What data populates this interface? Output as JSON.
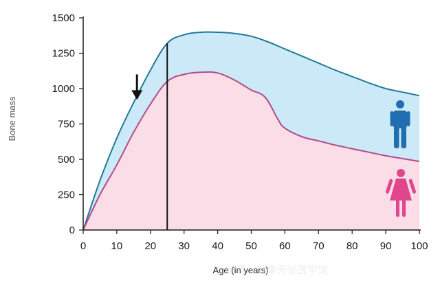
{
  "chart_data": {
    "type": "area",
    "title": "",
    "xlabel": "Age (in years)",
    "ylabel": "Bone mass",
    "xlim": [
      0,
      100
    ],
    "ylim": [
      0,
      1500
    ],
    "x_ticks": [
      0,
      10,
      20,
      30,
      40,
      50,
      60,
      70,
      80,
      90,
      100
    ],
    "y_ticks": [
      0,
      250,
      500,
      750,
      1000,
      1250,
      1500
    ],
    "grid": false,
    "series": [
      {
        "name": "Male",
        "color": "#1f7a96",
        "fill": "#cce9f8",
        "icon": "male-figure-icon",
        "icon_color": "#1f6fb0",
        "x": [
          0,
          5,
          10,
          15,
          20,
          25,
          30,
          35,
          40,
          45,
          50,
          55,
          60,
          65,
          70,
          75,
          80,
          85,
          90,
          95,
          100
        ],
        "values": [
          0,
          350,
          650,
          900,
          1130,
          1320,
          1380,
          1398,
          1398,
          1390,
          1370,
          1330,
          1280,
          1230,
          1180,
          1130,
          1085,
          1040,
          1000,
          975,
          950
        ]
      },
      {
        "name": "Female",
        "color": "#b34a86",
        "fill": "#fadde6",
        "icon": "female-figure-icon",
        "icon_color": "#e0468c",
        "x": [
          0,
          5,
          10,
          15,
          20,
          25,
          30,
          35,
          40,
          45,
          50,
          53,
          55,
          58,
          60,
          65,
          70,
          75,
          80,
          85,
          90,
          95,
          100
        ],
        "values": [
          0,
          250,
          460,
          690,
          890,
          1050,
          1100,
          1115,
          1110,
          1060,
          990,
          960,
          910,
          780,
          720,
          660,
          630,
          600,
          575,
          550,
          525,
          505,
          485
        ]
      }
    ],
    "annotations": [
      {
        "type": "vertical-line",
        "x": 25,
        "y": 1320
      },
      {
        "type": "down-arrow",
        "x": 16,
        "y_from": 1100,
        "y_to": 930
      }
    ]
  },
  "watermark": "头条号 / 健康天使医学馆"
}
